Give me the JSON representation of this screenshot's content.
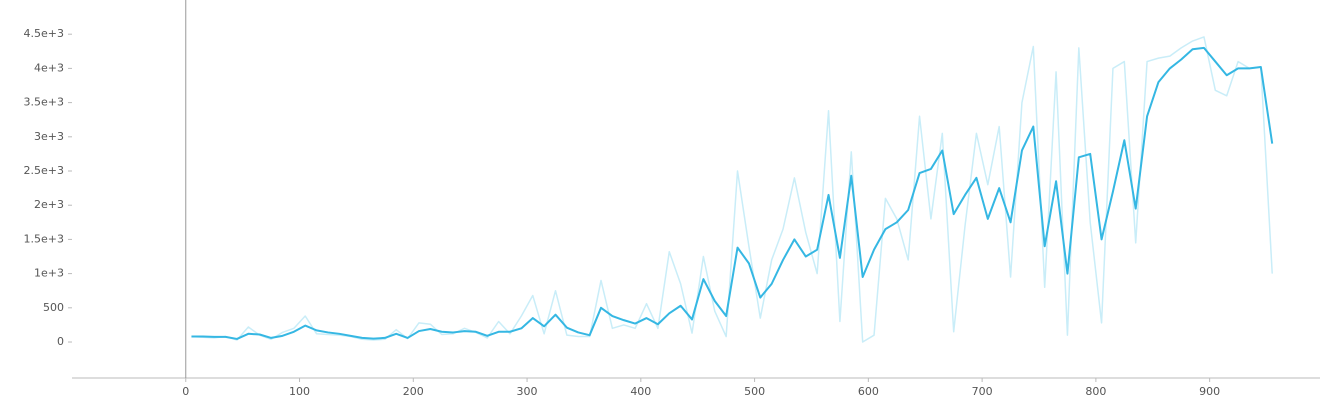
{
  "chart_data": {
    "type": "line",
    "x": [
      5,
      15,
      25,
      35,
      45,
      55,
      65,
      75,
      85,
      95,
      105,
      115,
      125,
      135,
      145,
      155,
      165,
      175,
      185,
      195,
      205,
      215,
      225,
      235,
      245,
      255,
      265,
      275,
      285,
      295,
      305,
      315,
      325,
      335,
      345,
      355,
      365,
      375,
      385,
      395,
      405,
      415,
      425,
      435,
      445,
      455,
      465,
      475,
      485,
      495,
      505,
      515,
      525,
      535,
      545,
      555,
      565,
      575,
      585,
      595,
      605,
      615,
      625,
      635,
      645,
      655,
      665,
      675,
      685,
      695,
      705,
      715,
      725,
      735,
      745,
      755,
      765,
      775,
      785,
      795,
      805,
      815,
      825,
      835,
      845,
      855,
      865,
      875,
      885,
      895,
      905,
      915,
      925,
      935,
      945,
      955
    ],
    "series": [
      {
        "color": "#c9edf8",
        "width": 1.5,
        "values": [
          80,
          70,
          60,
          80,
          30,
          220,
          100,
          40,
          140,
          200,
          380,
          120,
          110,
          100,
          80,
          40,
          30,
          40,
          180,
          50,
          280,
          260,
          110,
          120,
          200,
          140,
          60,
          300,
          120,
          380,
          680,
          120,
          750,
          100,
          80,
          80,
          900,
          200,
          250,
          200,
          560,
          200,
          1320,
          850,
          130,
          1250,
          450,
          80,
          2500,
          1400,
          350,
          1200,
          1650,
          2400,
          1600,
          1000,
          3380,
          300,
          2780,
          0,
          100,
          2100,
          1800,
          1200,
          3300,
          1800,
          3050,
          150,
          1700,
          3050,
          2300,
          3150,
          950,
          3500,
          4320,
          800,
          3950,
          100,
          4300,
          1750,
          280,
          4000,
          4100,
          1450,
          4100,
          4150,
          4180,
          4300,
          4400,
          4460,
          3680,
          3600,
          4100,
          4000,
          4020,
          1000
        ]
      },
      {
        "color": "#35b7e3",
        "width": 2,
        "values": [
          80,
          80,
          75,
          75,
          45,
          120,
          110,
          60,
          90,
          150,
          240,
          170,
          140,
          120,
          90,
          60,
          50,
          60,
          120,
          60,
          160,
          190,
          150,
          140,
          160,
          150,
          90,
          150,
          150,
          200,
          350,
          230,
          400,
          210,
          140,
          100,
          500,
          380,
          320,
          270,
          350,
          260,
          420,
          530,
          330,
          920,
          600,
          380,
          1380,
          1150,
          650,
          850,
          1200,
          1500,
          1250,
          1350,
          2150,
          1230,
          2430,
          950,
          1350,
          1650,
          1750,
          1930,
          2470,
          2530,
          2800,
          1870,
          2150,
          2400,
          1800,
          2250,
          1750,
          2800,
          3150,
          1400,
          2350,
          1000,
          2700,
          2750,
          1500,
          2200,
          2950,
          1950,
          3300,
          3800,
          4000,
          4130,
          4280,
          4300,
          4100,
          3900,
          4000,
          4000,
          4020,
          2900
        ]
      }
    ],
    "xlim": [
      -100,
      997
    ],
    "xticks": [
      0,
      100,
      200,
      300,
      400,
      500,
      600,
      700,
      800,
      900
    ],
    "ylim": [
      -526,
      5000
    ],
    "yticks": [
      0,
      500,
      {
        "value": 1000,
        "label": "1e+3"
      },
      {
        "value": 1500,
        "label": "1.5e+3"
      },
      {
        "value": 2000,
        "label": "2e+3"
      },
      {
        "value": 2500,
        "label": "2.5e+3"
      },
      {
        "value": 3000,
        "label": "3e+3"
      },
      {
        "value": 3500,
        "label": "3.5e+3"
      },
      {
        "value": 4000,
        "label": "4e+3"
      },
      {
        "value": 4500,
        "label": "4.5e+3"
      }
    ],
    "grid": false
  }
}
